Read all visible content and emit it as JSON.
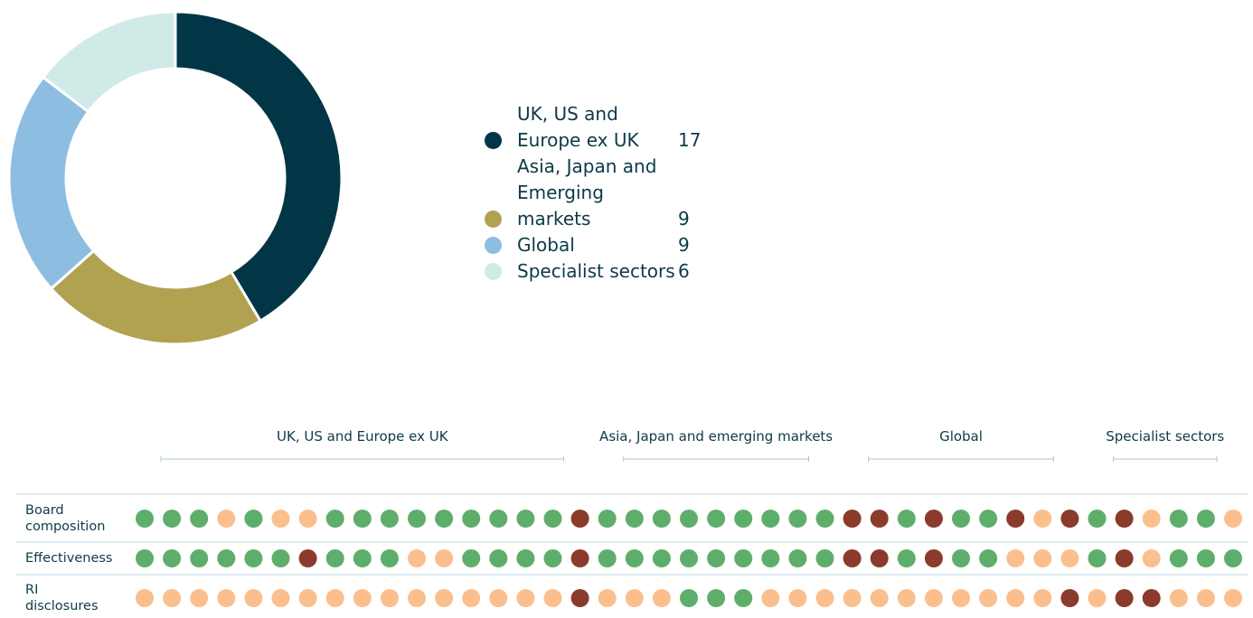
{
  "chart_data": [
    {
      "type": "pie",
      "categories": [
        "UK, US and Europe ex UK",
        "Asia, Japan and Emerging markets",
        "Global",
        "Specialist sectors"
      ],
      "values": [
        17,
        9,
        9,
        6
      ],
      "colors": [
        "#023646",
        "#b1a252",
        "#8ebde2",
        "#d0ebe7"
      ]
    },
    {
      "type": "dot-matrix",
      "groups": [
        "UK, US and Europe ex UK",
        "Asia, Japan and emerging markets",
        "Global",
        "Specialist sectors"
      ],
      "rows": [
        {
          "label": "Board composition",
          "cells": [
            [
              "#5eae6b",
              "#5eae6b",
              "#5eae6b",
              "#fbbf8e",
              "#5eae6b",
              "#fbbf8e",
              "#fbbf8e",
              "#5eae6b",
              "#5eae6b",
              "#5eae6b",
              "#5eae6b",
              "#5eae6b",
              "#5eae6b",
              "#5eae6b",
              "#5eae6b",
              "#5eae6b",
              "#8a3b2c"
            ],
            [
              "#5eae6b",
              "#5eae6b",
              "#5eae6b",
              "#5eae6b",
              "#5eae6b",
              "#5eae6b",
              "#5eae6b",
              "#5eae6b",
              "#5eae6b"
            ],
            [
              "#8a3b2c",
              "#8a3b2c",
              "#5eae6b",
              "#8a3b2c",
              "#5eae6b",
              "#5eae6b",
              "#8a3b2c",
              "#fbbf8e",
              "#8a3b2c"
            ],
            [
              "#5eae6b",
              "#8a3b2c",
              "#fbbf8e",
              "#5eae6b",
              "#5eae6b",
              "#fbbf8e"
            ]
          ]
        },
        {
          "label": "Effectiveness",
          "cells": [
            [
              "#5eae6b",
              "#5eae6b",
              "#5eae6b",
              "#5eae6b",
              "#5eae6b",
              "#5eae6b",
              "#8a3b2c",
              "#5eae6b",
              "#5eae6b",
              "#5eae6b",
              "#fbbf8e",
              "#fbbf8e",
              "#5eae6b",
              "#5eae6b",
              "#5eae6b",
              "#5eae6b",
              "#8a3b2c"
            ],
            [
              "#5eae6b",
              "#5eae6b",
              "#5eae6b",
              "#5eae6b",
              "#5eae6b",
              "#5eae6b",
              "#5eae6b",
              "#5eae6b",
              "#5eae6b"
            ],
            [
              "#8a3b2c",
              "#8a3b2c",
              "#5eae6b",
              "#8a3b2c",
              "#5eae6b",
              "#5eae6b",
              "#fbbf8e",
              "#fbbf8e",
              "#fbbf8e"
            ],
            [
              "#5eae6b",
              "#8a3b2c",
              "#fbbf8e",
              "#5eae6b",
              "#5eae6b",
              "#5eae6b"
            ]
          ]
        },
        {
          "label": "RI disclosures",
          "cells": [
            [
              "#fbbf8e",
              "#fbbf8e",
              "#fbbf8e",
              "#fbbf8e",
              "#fbbf8e",
              "#fbbf8e",
              "#fbbf8e",
              "#fbbf8e",
              "#fbbf8e",
              "#fbbf8e",
              "#fbbf8e",
              "#fbbf8e",
              "#fbbf8e",
              "#fbbf8e",
              "#fbbf8e",
              "#fbbf8e",
              "#8a3b2c"
            ],
            [
              "#fbbf8e",
              "#fbbf8e",
              "#fbbf8e",
              "#5eae6b",
              "#5eae6b",
              "#5eae6b",
              "#fbbf8e",
              "#fbbf8e",
              "#fbbf8e"
            ],
            [
              "#fbbf8e",
              "#fbbf8e",
              "#fbbf8e",
              "#fbbf8e",
              "#fbbf8e",
              "#fbbf8e",
              "#fbbf8e",
              "#fbbf8e",
              "#8a3b2c"
            ],
            [
              "#fbbf8e",
              "#8a3b2c",
              "#8a3b2c",
              "#fbbf8e",
              "#fbbf8e",
              "#fbbf8e"
            ]
          ]
        }
      ]
    }
  ]
}
